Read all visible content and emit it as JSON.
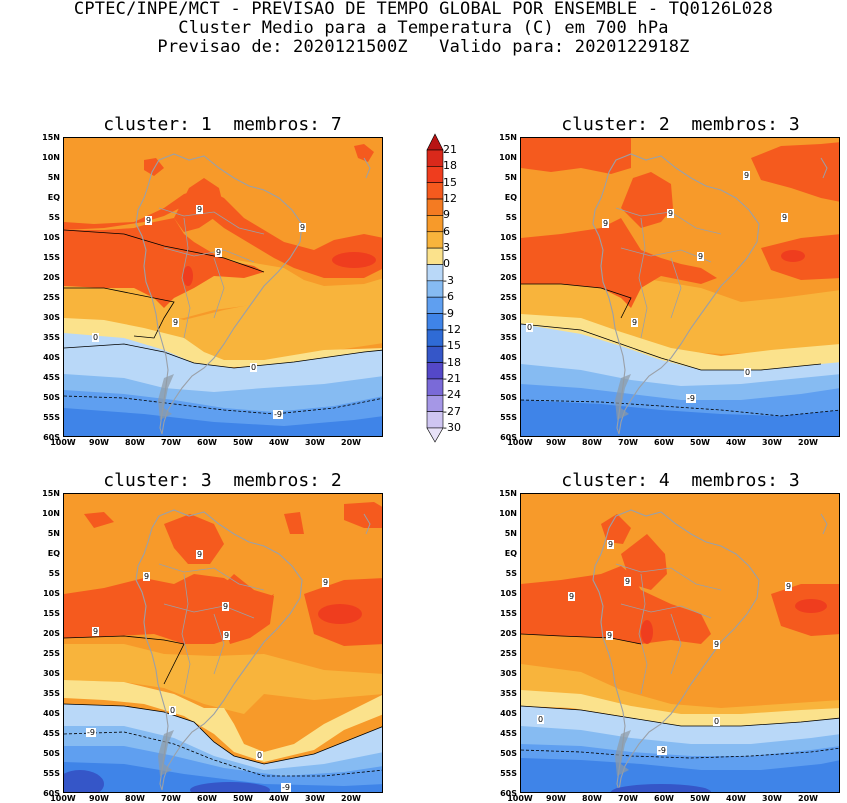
{
  "header": {
    "line1": "CPTEC/INPE/MCT - PREVISAO DE TEMPO GLOBAL POR ENSEMBLE - TQ0126L028",
    "line2": "Cluster Medio para a Temperatura (C) em 700 hPa",
    "line3": "Previsao de: 2020121500Z   Valido para: 2020122918Z"
  },
  "panels": [
    {
      "title": "cluster: 1  membros: 7"
    },
    {
      "title": "cluster: 2  membros: 3"
    },
    {
      "title": "cluster: 3  membros: 2"
    },
    {
      "title": "cluster: 4  membros: 3"
    }
  ],
  "lat_labels": [
    "15N",
    "10N",
    "5N",
    "EQ",
    "5S",
    "10S",
    "15S",
    "20S",
    "25S",
    "30S",
    "35S",
    "40S",
    "45S",
    "50S",
    "55S",
    "60S"
  ],
  "lon_labels": [
    "100W",
    "90W",
    "80W",
    "70W",
    "60W",
    "50W",
    "40W",
    "30W",
    "20W"
  ],
  "colorbar": {
    "labels": [
      "21",
      "18",
      "15",
      "12",
      "9",
      "6",
      "3",
      "0",
      "-3",
      "-6",
      "-9",
      "-12",
      "-15",
      "-18",
      "-21",
      "-24",
      "-27",
      "-30"
    ],
    "colors": [
      "#b81414",
      "#d9291b",
      "#ef3d1e",
      "#f55a1e",
      "#f47b22",
      "#f79a2a",
      "#f8b43c",
      "#fbe28c",
      "#b9d8f8",
      "#86bbf2",
      "#5f9ff0",
      "#3f84e8",
      "#2f6bd6",
      "#3556c8",
      "#5448c8",
      "#7a6ad8",
      "#a597e6",
      "#cfc6f2",
      "#e8e2f8"
    ]
  },
  "contour_labels": {
    "c1": [
      "9",
      "9",
      "9",
      "9",
      "9",
      "0",
      "0",
      "-9"
    ],
    "c2": [
      "9",
      "9",
      "9",
      "9",
      "9",
      "9",
      "0",
      "0",
      "-9"
    ],
    "c3": [
      "9",
      "9",
      "9",
      "9",
      "9",
      "9",
      "0",
      "0",
      "-9",
      "-9"
    ],
    "c4": [
      "9",
      "9",
      "9",
      "9",
      "9",
      "9",
      "0",
      "0",
      "-9"
    ]
  }
}
